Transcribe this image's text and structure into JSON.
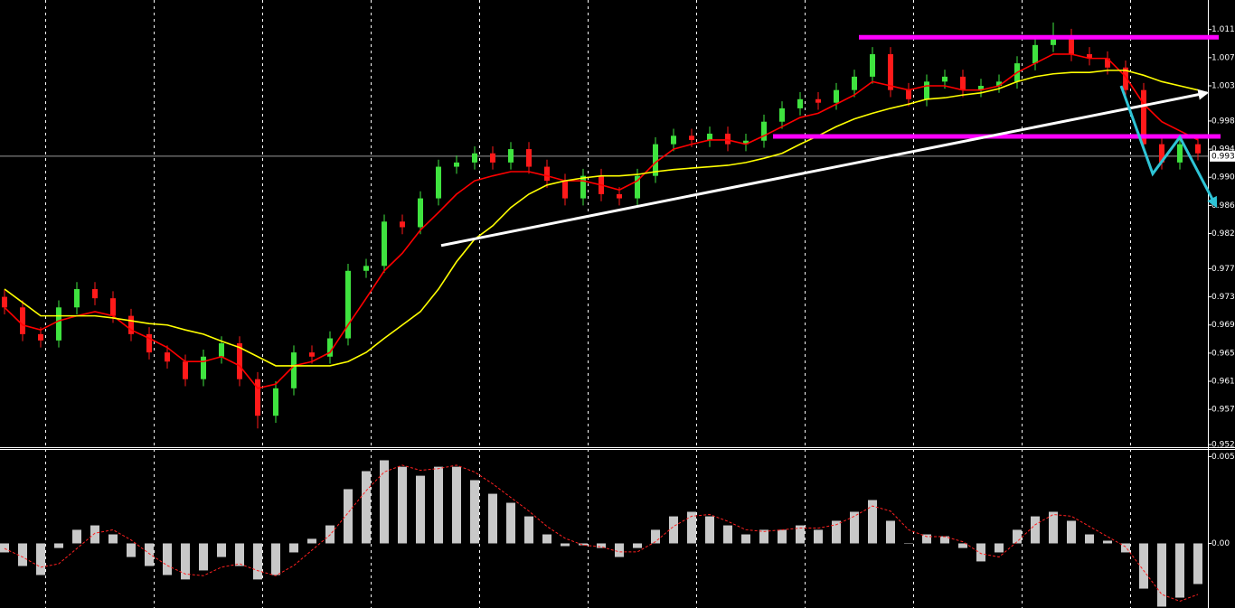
{
  "chart_data": [
    {
      "type": "candlestick",
      "ylim": [
        0.9515,
        1.0152
      ],
      "yticks": [
        1.011,
        1.007,
        1.003,
        0.998,
        0.994,
        {
          "value": 0.99,
          "label": "0.990"
        },
        0.986,
        0.982,
        0.977,
        0.973,
        0.969,
        0.965,
        0.961,
        0.957,
        0.952
      ],
      "grid": true,
      "up_color": "#3fe33f",
      "down_color": "#ff1a1a",
      "open": [
        0.973,
        0.9715,
        0.9677,
        0.9668,
        0.9715,
        0.9741,
        0.9728,
        0.9703,
        0.9677,
        0.9651,
        0.9638,
        0.9613,
        0.9645,
        0.9664,
        0.9613,
        0.9561,
        0.96,
        0.9651,
        0.9645,
        0.9671,
        0.9767,
        0.9774,
        0.9837,
        0.9829,
        0.987,
        0.9915,
        0.9921,
        0.9934,
        0.9921,
        0.994,
        0.9915,
        0.9895,
        0.987,
        0.9902,
        0.9876,
        0.987,
        0.9902,
        0.9947,
        0.9959,
        0.9953,
        0.9962,
        0.9947,
        0.9952,
        0.9979,
        0.9998,
        1.0011,
        1.0006,
        1.0024,
        1.0043,
        1.0075,
        1.0024,
        1.0011,
        1.0036,
        1.0043,
        1.0024,
        1.003,
        1.0036,
        1.0062,
        1.0088,
        1.0101,
        1.0075,
        1.0069,
        1.0056,
        1.0024,
        0.9947,
        0.9921,
        0.9947
      ],
      "high": [
        0.974,
        0.9725,
        0.9687,
        0.9725,
        0.9751,
        0.9751,
        0.9738,
        0.9713,
        0.9687,
        0.9661,
        0.9648,
        0.9655,
        0.9674,
        0.9674,
        0.9623,
        0.961,
        0.9661,
        0.9661,
        0.9681,
        0.9777,
        0.9784,
        0.9847,
        0.9847,
        0.988,
        0.9925,
        0.9931,
        0.9944,
        0.9944,
        0.995,
        0.995,
        0.9925,
        0.9905,
        0.9912,
        0.9912,
        0.9886,
        0.9912,
        0.9957,
        0.9969,
        0.9969,
        0.9972,
        0.9972,
        0.9962,
        0.9989,
        1.0008,
        1.0021,
        1.0021,
        1.0034,
        1.0053,
        1.0085,
        1.0085,
        1.0034,
        1.0046,
        1.0053,
        1.0053,
        1.004,
        1.0046,
        1.0072,
        1.0098,
        1.012,
        1.0111,
        1.0085,
        1.0079,
        1.0066,
        1.0034,
        0.9957,
        0.9957,
        0.9957
      ],
      "low": [
        0.9705,
        0.9667,
        0.9658,
        0.9658,
        0.9705,
        0.9718,
        0.9693,
        0.9667,
        0.9641,
        0.9628,
        0.9603,
        0.9603,
        0.9635,
        0.9603,
        0.9543,
        0.9551,
        0.959,
        0.9635,
        0.9635,
        0.9661,
        0.9757,
        0.9764,
        0.9819,
        0.9819,
        0.986,
        0.9905,
        0.9911,
        0.9911,
        0.9911,
        0.9905,
        0.9885,
        0.986,
        0.986,
        0.9866,
        0.986,
        0.986,
        0.9892,
        0.9937,
        0.9943,
        0.9943,
        0.9937,
        0.9937,
        0.9942,
        0.9969,
        0.9988,
        0.9996,
        0.9996,
        1.0014,
        1.0033,
        1.0014,
        1.0001,
        1.0001,
        1.0026,
        1.0014,
        1.0014,
        1.002,
        1.0026,
        1.0052,
        1.0078,
        1.0065,
        1.0059,
        1.0046,
        1.0014,
        0.9937,
        0.9911,
        0.9911,
        0.9924
      ],
      "close": [
        0.9715,
        0.9677,
        0.9668,
        0.9715,
        0.9741,
        0.9728,
        0.9703,
        0.9677,
        0.9651,
        0.9638,
        0.9613,
        0.9645,
        0.9664,
        0.9613,
        0.9561,
        0.96,
        0.9651,
        0.9645,
        0.9671,
        0.9767,
        0.9774,
        0.9837,
        0.9829,
        0.987,
        0.9915,
        0.9921,
        0.9934,
        0.9921,
        0.994,
        0.9915,
        0.9895,
        0.987,
        0.9902,
        0.9876,
        0.987,
        0.9902,
        0.9947,
        0.9959,
        0.9953,
        0.9962,
        0.9947,
        0.9952,
        0.9979,
        0.9998,
        1.0011,
        1.0006,
        1.0024,
        1.0043,
        1.0075,
        1.0024,
        1.0011,
        1.0036,
        1.0043,
        1.0024,
        1.003,
        1.0036,
        1.0062,
        1.0088,
        1.0101,
        1.0075,
        1.0069,
        1.0056,
        1.0024,
        0.9947,
        0.9921,
        0.9947,
        0.9934
      ],
      "series": [
        {
          "color": "#ff0000",
          "values": [
            0.9715,
            0.969,
            0.9683,
            0.9696,
            0.9703,
            0.9709,
            0.9703,
            0.9683,
            0.9671,
            0.9658,
            0.9638,
            0.9638,
            0.9645,
            0.9632,
            0.96,
            0.9606,
            0.9632,
            0.9638,
            0.9651,
            0.969,
            0.9728,
            0.9767,
            0.9792,
            0.9825,
            0.985,
            0.9876,
            0.9895,
            0.9902,
            0.9908,
            0.9908,
            0.9902,
            0.9895,
            0.9895,
            0.9889,
            0.9882,
            0.9895,
            0.9921,
            0.994,
            0.9947,
            0.9953,
            0.9953,
            0.9947,
            0.9959,
            0.9972,
            0.9985,
            0.9991,
            1.0004,
            1.0017,
            1.0036,
            1.003,
            1.0024,
            1.003,
            1.003,
            1.0024,
            1.0024,
            1.003,
            1.0049,
            1.0062,
            1.0075,
            1.0075,
            1.0069,
            1.0069,
            1.0043,
            1.0004,
            0.9979,
            0.9966,
            0.9953
          ]
        },
        {
          "color": "#ffff00",
          "values": [
            0.9741,
            0.9722,
            0.9703,
            0.9703,
            0.9703,
            0.9703,
            0.97,
            0.9696,
            0.9692,
            0.969,
            0.9683,
            0.9677,
            0.9667,
            0.9658,
            0.9645,
            0.9632,
            0.9632,
            0.9632,
            0.9632,
            0.9638,
            0.9651,
            0.9671,
            0.969,
            0.9709,
            0.9741,
            0.978,
            0.9812,
            0.9831,
            0.9857,
            0.9876,
            0.9889,
            0.9895,
            0.9899,
            0.9902,
            0.9902,
            0.9904,
            0.9908,
            0.9911,
            0.9913,
            0.9915,
            0.9917,
            0.9921,
            0.9927,
            0.9934,
            0.9947,
            0.9959,
            0.9972,
            0.9983,
            0.9991,
            0.9998,
            1.0004,
            1.0011,
            1.0013,
            1.0017,
            1.002,
            1.0026,
            1.0036,
            1.0043,
            1.0047,
            1.0049,
            1.0049,
            1.0052,
            1.0052,
            1.0045,
            1.0036,
            1.003,
            1.0024
          ]
        }
      ],
      "current_price": {
        "value": 0.993,
        "label": "0.993"
      },
      "drawings": [
        {
          "color": "#ff00ff",
          "width": 5,
          "arrow": false,
          "points": [
            [
              47.25,
              1.0099
            ],
            [
              67.15,
              1.0099
            ]
          ]
        },
        {
          "color": "#ff00ff",
          "width": 5,
          "arrow": false,
          "points": [
            [
              42.5,
              0.9958
            ],
            [
              67.25,
              0.9958
            ]
          ]
        },
        {
          "color": "#ffffff",
          "width": 3,
          "arrow": true,
          "points": [
            [
              24.15,
              0.9803
            ],
            [
              66.5,
              1.002
            ]
          ]
        },
        {
          "color": "#2ec4d6",
          "width": 3,
          "arrow": true,
          "points": [
            [
              61.75,
              1.003
            ],
            [
              63.5,
              0.9905
            ],
            [
              65,
              0.9957
            ],
            [
              67,
              0.9859
            ]
          ]
        }
      ]
    },
    {
      "type": "macd",
      "ylim": [
        -0.0038,
        0.0055
      ],
      "yticks": [
        0.0051,
        {
          "value": 0,
          "label": "0.00"
        }
      ],
      "color": "#c8c8c8",
      "values": [
        -0.00053,
        -0.00133,
        -0.00186,
        -0.00027,
        0.0008,
        0.00106,
        0.00053,
        -0.0008,
        -0.00133,
        -0.00186,
        -0.00212,
        -0.00159,
        -0.0008,
        -0.00133,
        -0.00212,
        -0.00186,
        -0.00053,
        0.00027,
        0.00106,
        0.00319,
        0.00425,
        0.00489,
        0.00451,
        0.00398,
        0.00451,
        0.00451,
        0.00372,
        0.00292,
        0.00239,
        0.00159,
        0.00053,
        -0.00016,
        -0.00011,
        -0.00027,
        -0.0008,
        -0.00027,
        0.0008,
        0.00159,
        0.00186,
        0.00159,
        0.00106,
        0.00053,
        0.0008,
        0.0008,
        0.00106,
        0.0008,
        0.00133,
        0.00186,
        0.00255,
        0.00133,
        0,
        0.00053,
        0.00042,
        -0.00027,
        -0.00106,
        -0.00053,
        0.0008,
        0.00159,
        0.00186,
        0.00133,
        0.00053,
        0.00016,
        -0.00053,
        -0.00266,
        -0.00372,
        -0.00319,
        -0.00239
      ],
      "signal": {
        "color": "#ff2020",
        "values": [
          -0.0003,
          -0.0008,
          -0.0014,
          -0.0012,
          -0.0003,
          0.0006,
          0.0008,
          0.0002,
          -0.0006,
          -0.0013,
          -0.0018,
          -0.0019,
          -0.0014,
          -0.0012,
          -0.0016,
          -0.0019,
          -0.0013,
          -0.0004,
          0.0005,
          0.0018,
          0.0031,
          0.0042,
          0.0046,
          0.0043,
          0.0044,
          0.0046,
          0.0042,
          0.0035,
          0.0027,
          0.0019,
          0.001,
          0.0003,
          -0.0001,
          -0.0002,
          -0.0005,
          -0.0005,
          0.0001,
          0.001,
          0.0016,
          0.0017,
          0.0013,
          0.0008,
          0.0007,
          0.0008,
          0.0009,
          0.0009,
          0.0011,
          0.0016,
          0.0022,
          0.0019,
          0.0008,
          0.0004,
          0.0004,
          0.0001,
          -0.0006,
          -0.0008,
          0.0001,
          0.0011,
          0.0017,
          0.0016,
          0.001,
          0.0004,
          -0.0002,
          -0.0016,
          -0.003,
          -0.0034,
          -0.003
        ]
      }
    }
  ]
}
